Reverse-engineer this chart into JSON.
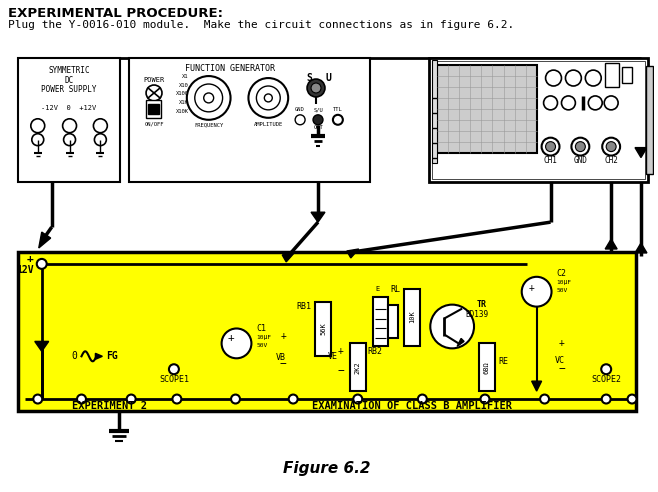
{
  "title_text": "EXPERIMENTAL PROCEDURE:",
  "subtitle_text": "Plug the Y-0016-010 module.  Make the circuit connections as in figure 6.2.",
  "figure_caption": "Figure 6.2",
  "bg_color": "#ffffff",
  "yellow_color": "#ffff00",
  "black": "#000000"
}
